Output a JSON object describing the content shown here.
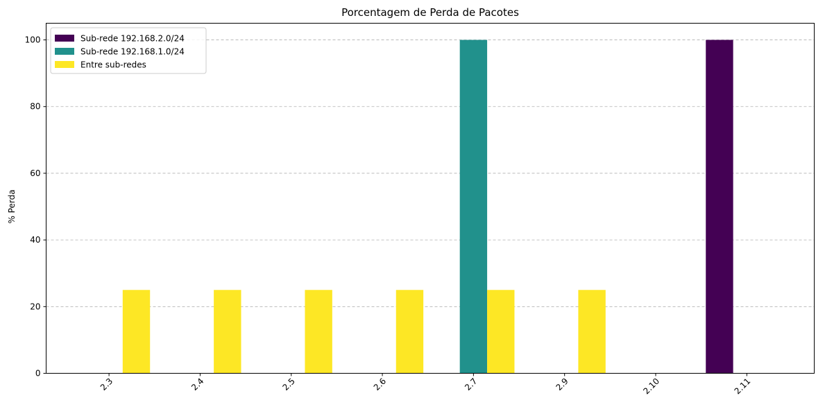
{
  "chart_data": {
    "type": "bar",
    "title": "Porcentagem de Perda de Pacotes",
    "xlabel": "",
    "ylabel": "% Perda",
    "categories": [
      "2.3",
      "2.4",
      "2.5",
      "2.6",
      "2.7",
      "2.9",
      "2.10",
      "2.11"
    ],
    "series": [
      {
        "name": "Sub-rede 192.168.2.0/24",
        "color": "#440154",
        "values": [
          0,
          0,
          0,
          0,
          0,
          0,
          0,
          100
        ]
      },
      {
        "name": "Sub-rede 192.168.1.0/24",
        "color": "#21918c",
        "values": [
          0,
          0,
          0,
          0,
          100,
          0,
          0,
          0
        ]
      },
      {
        "name": "Entre sub-redes",
        "color": "#fde725",
        "values": [
          25,
          25,
          25,
          25,
          25,
          25,
          0,
          0
        ]
      }
    ],
    "ylim": [
      0,
      105
    ],
    "yticks": [
      0,
      20,
      40,
      60,
      80,
      100
    ],
    "grid": "y-dashed",
    "legend_position": "top-left",
    "xtick_rotation": 45
  }
}
